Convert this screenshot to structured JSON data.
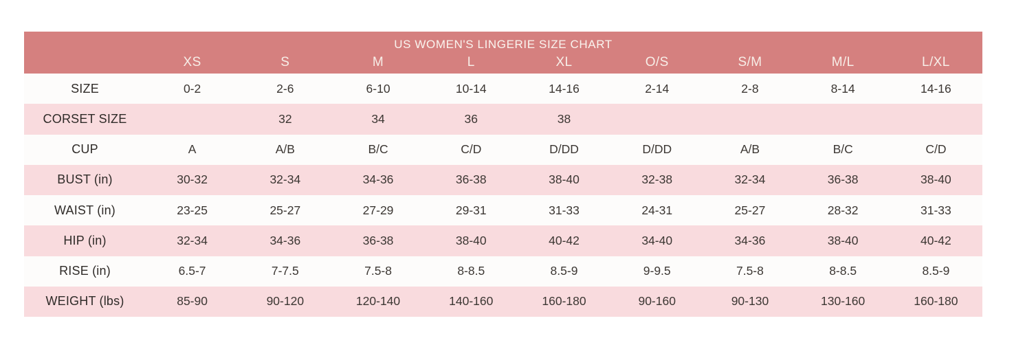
{
  "colors": {
    "header_bg": "#d5807f",
    "row_pink": "#f9dbde",
    "row_white": "#fdfcfb",
    "header_text": "#f7f0ea",
    "label_text": "#2f2b28",
    "value_text": "#3c3733",
    "page_bg": "#ffffff"
  },
  "chart_data": {
    "type": "table",
    "title": "US WOMEN'S LINGERIE SIZE CHART",
    "columns": [
      "XS",
      "S",
      "M",
      "L",
      "XL",
      "O/S",
      "S/M",
      "M/L",
      "L/XL"
    ],
    "rows": [
      {
        "label": "SIZE",
        "values": [
          "0-2",
          "2-6",
          "6-10",
          "10-14",
          "14-16",
          "2-14",
          "2-8",
          "8-14",
          "14-16"
        ]
      },
      {
        "label": "CORSET SIZE",
        "values": [
          "",
          "32",
          "34",
          "36",
          "38",
          "",
          "",
          "",
          ""
        ]
      },
      {
        "label": "CUP",
        "values": [
          "A",
          "A/B",
          "B/C",
          "C/D",
          "D/DD",
          "D/DD",
          "A/B",
          "B/C",
          "C/D"
        ]
      },
      {
        "label": "BUST (in)",
        "values": [
          "30-32",
          "32-34",
          "34-36",
          "36-38",
          "38-40",
          "32-38",
          "32-34",
          "36-38",
          "38-40"
        ]
      },
      {
        "label": "WAIST (in)",
        "values": [
          "23-25",
          "25-27",
          "27-29",
          "29-31",
          "31-33",
          "24-31",
          "25-27",
          "28-32",
          "31-33"
        ]
      },
      {
        "label": "HIP (in)",
        "values": [
          "32-34",
          "34-36",
          "36-38",
          "38-40",
          "40-42",
          "34-40",
          "34-36",
          "38-40",
          "40-42"
        ]
      },
      {
        "label": "RISE (in)",
        "values": [
          "6.5-7",
          "7-7.5",
          "7.5-8",
          "8-8.5",
          "8.5-9",
          "9-9.5",
          "7.5-8",
          "8-8.5",
          "8.5-9"
        ]
      },
      {
        "label": "WEIGHT (lbs)",
        "values": [
          "85-90",
          "90-120",
          "120-140",
          "140-160",
          "160-180",
          "90-160",
          "90-130",
          "130-160",
          "160-180"
        ]
      }
    ],
    "layout": {
      "label_column_first": true,
      "alternating_row_shading": true,
      "title_position": "top-center"
    }
  }
}
